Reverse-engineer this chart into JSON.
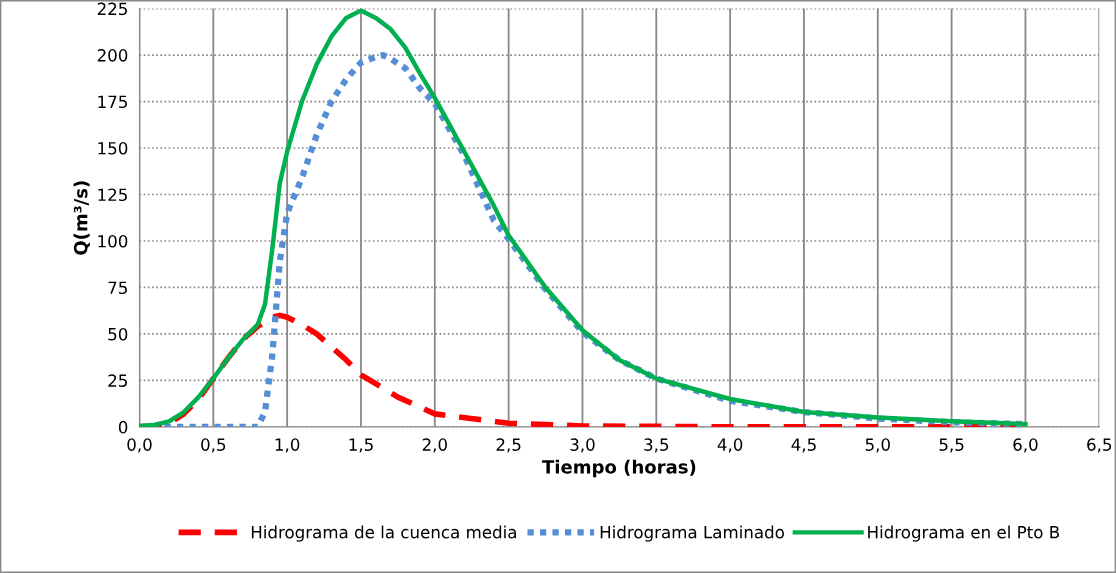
{
  "chart_data": {
    "type": "line",
    "xlabel": "Tiempo (horas)",
    "ylabel": "Q(m³/s)",
    "xlim": [
      0,
      6.5
    ],
    "ylim": [
      0,
      225
    ],
    "xticks": [
      {
        "value": 0,
        "label": "0,0"
      },
      {
        "value": 0.5,
        "label": "0,5"
      },
      {
        "value": 1,
        "label": "1,0"
      },
      {
        "value": 1.5,
        "label": "1,5"
      },
      {
        "value": 2,
        "label": "2,0"
      },
      {
        "value": 2.5,
        "label": "2,5"
      },
      {
        "value": 3,
        "label": "3,0"
      },
      {
        "value": 3.5,
        "label": "3,5"
      },
      {
        "value": 4,
        "label": "4,0"
      },
      {
        "value": 4.5,
        "label": "4,5"
      },
      {
        "value": 5,
        "label": "5,0"
      },
      {
        "value": 5.5,
        "label": "5,5"
      },
      {
        "value": 6,
        "label": "6,0"
      },
      {
        "value": 6.5,
        "label": "6,5"
      }
    ],
    "yticks": [
      0,
      25,
      50,
      75,
      100,
      125,
      150,
      175,
      200,
      225
    ],
    "grid": true,
    "legend": "bottom",
    "marker": "none",
    "series": [
      {
        "name": "Hidrograma de la cuenca media",
        "color": "#ff0000",
        "line_style": "dashed",
        "x": [
          0,
          0.1,
          0.2,
          0.3,
          0.4,
          0.5,
          0.6,
          0.7,
          0.8,
          0.9,
          0.95,
          1.0,
          1.1,
          1.2,
          1.3,
          1.4,
          1.5,
          1.75,
          2.0,
          2.5,
          3.0,
          3.5,
          4.0,
          4.5,
          5.0,
          5.5,
          6.0
        ],
        "values": [
          0,
          0.5,
          2,
          7,
          15,
          26,
          37,
          47,
          54,
          59,
          60,
          59,
          55,
          50,
          43,
          36,
          28,
          16,
          7,
          2,
          0.5,
          0.3,
          0,
          0,
          0,
          0,
          0
        ]
      },
      {
        "name": "Hidrograma Laminado",
        "color": "#558ed5",
        "line_style": "dotted",
        "x": [
          0,
          0.2,
          0.4,
          0.6,
          0.8,
          0.85,
          0.9,
          0.95,
          1.0,
          1.1,
          1.2,
          1.3,
          1.4,
          1.5,
          1.6,
          1.65,
          1.7,
          1.8,
          1.9,
          2.0,
          2.2,
          2.4,
          2.5,
          2.75,
          3.0,
          3.25,
          3.5,
          4.0,
          4.5,
          5.0,
          5.5,
          6.0
        ],
        "values": [
          0,
          0,
          0,
          0,
          0,
          8,
          39,
          89,
          115,
          134,
          157,
          175,
          187,
          196,
          199,
          200,
          198,
          193,
          182,
          174,
          146,
          111,
          101,
          74,
          51,
          36,
          26,
          14,
          8,
          4.5,
          2.5,
          1.5
        ]
      },
      {
        "name": "Hidrograma en el Pto B",
        "color": "#00b050",
        "line_style": "solid",
        "x": [
          0,
          0.1,
          0.2,
          0.3,
          0.4,
          0.5,
          0.6,
          0.7,
          0.8,
          0.85,
          0.9,
          0.95,
          1.0,
          1.1,
          1.2,
          1.3,
          1.4,
          1.5,
          1.6,
          1.7,
          1.8,
          1.9,
          2.0,
          2.2,
          2.4,
          2.5,
          2.75,
          3.0,
          3.25,
          3.5,
          4.0,
          4.5,
          5.0,
          5.5,
          6.0
        ],
        "values": [
          0.5,
          1,
          3,
          8,
          16,
          26,
          37,
          47,
          55,
          66,
          96,
          131,
          148,
          175,
          195,
          210,
          220,
          224,
          220,
          214,
          204,
          190,
          177,
          148,
          119,
          103,
          75,
          52,
          36,
          26,
          15,
          8,
          5,
          3,
          1.5
        ]
      }
    ]
  }
}
